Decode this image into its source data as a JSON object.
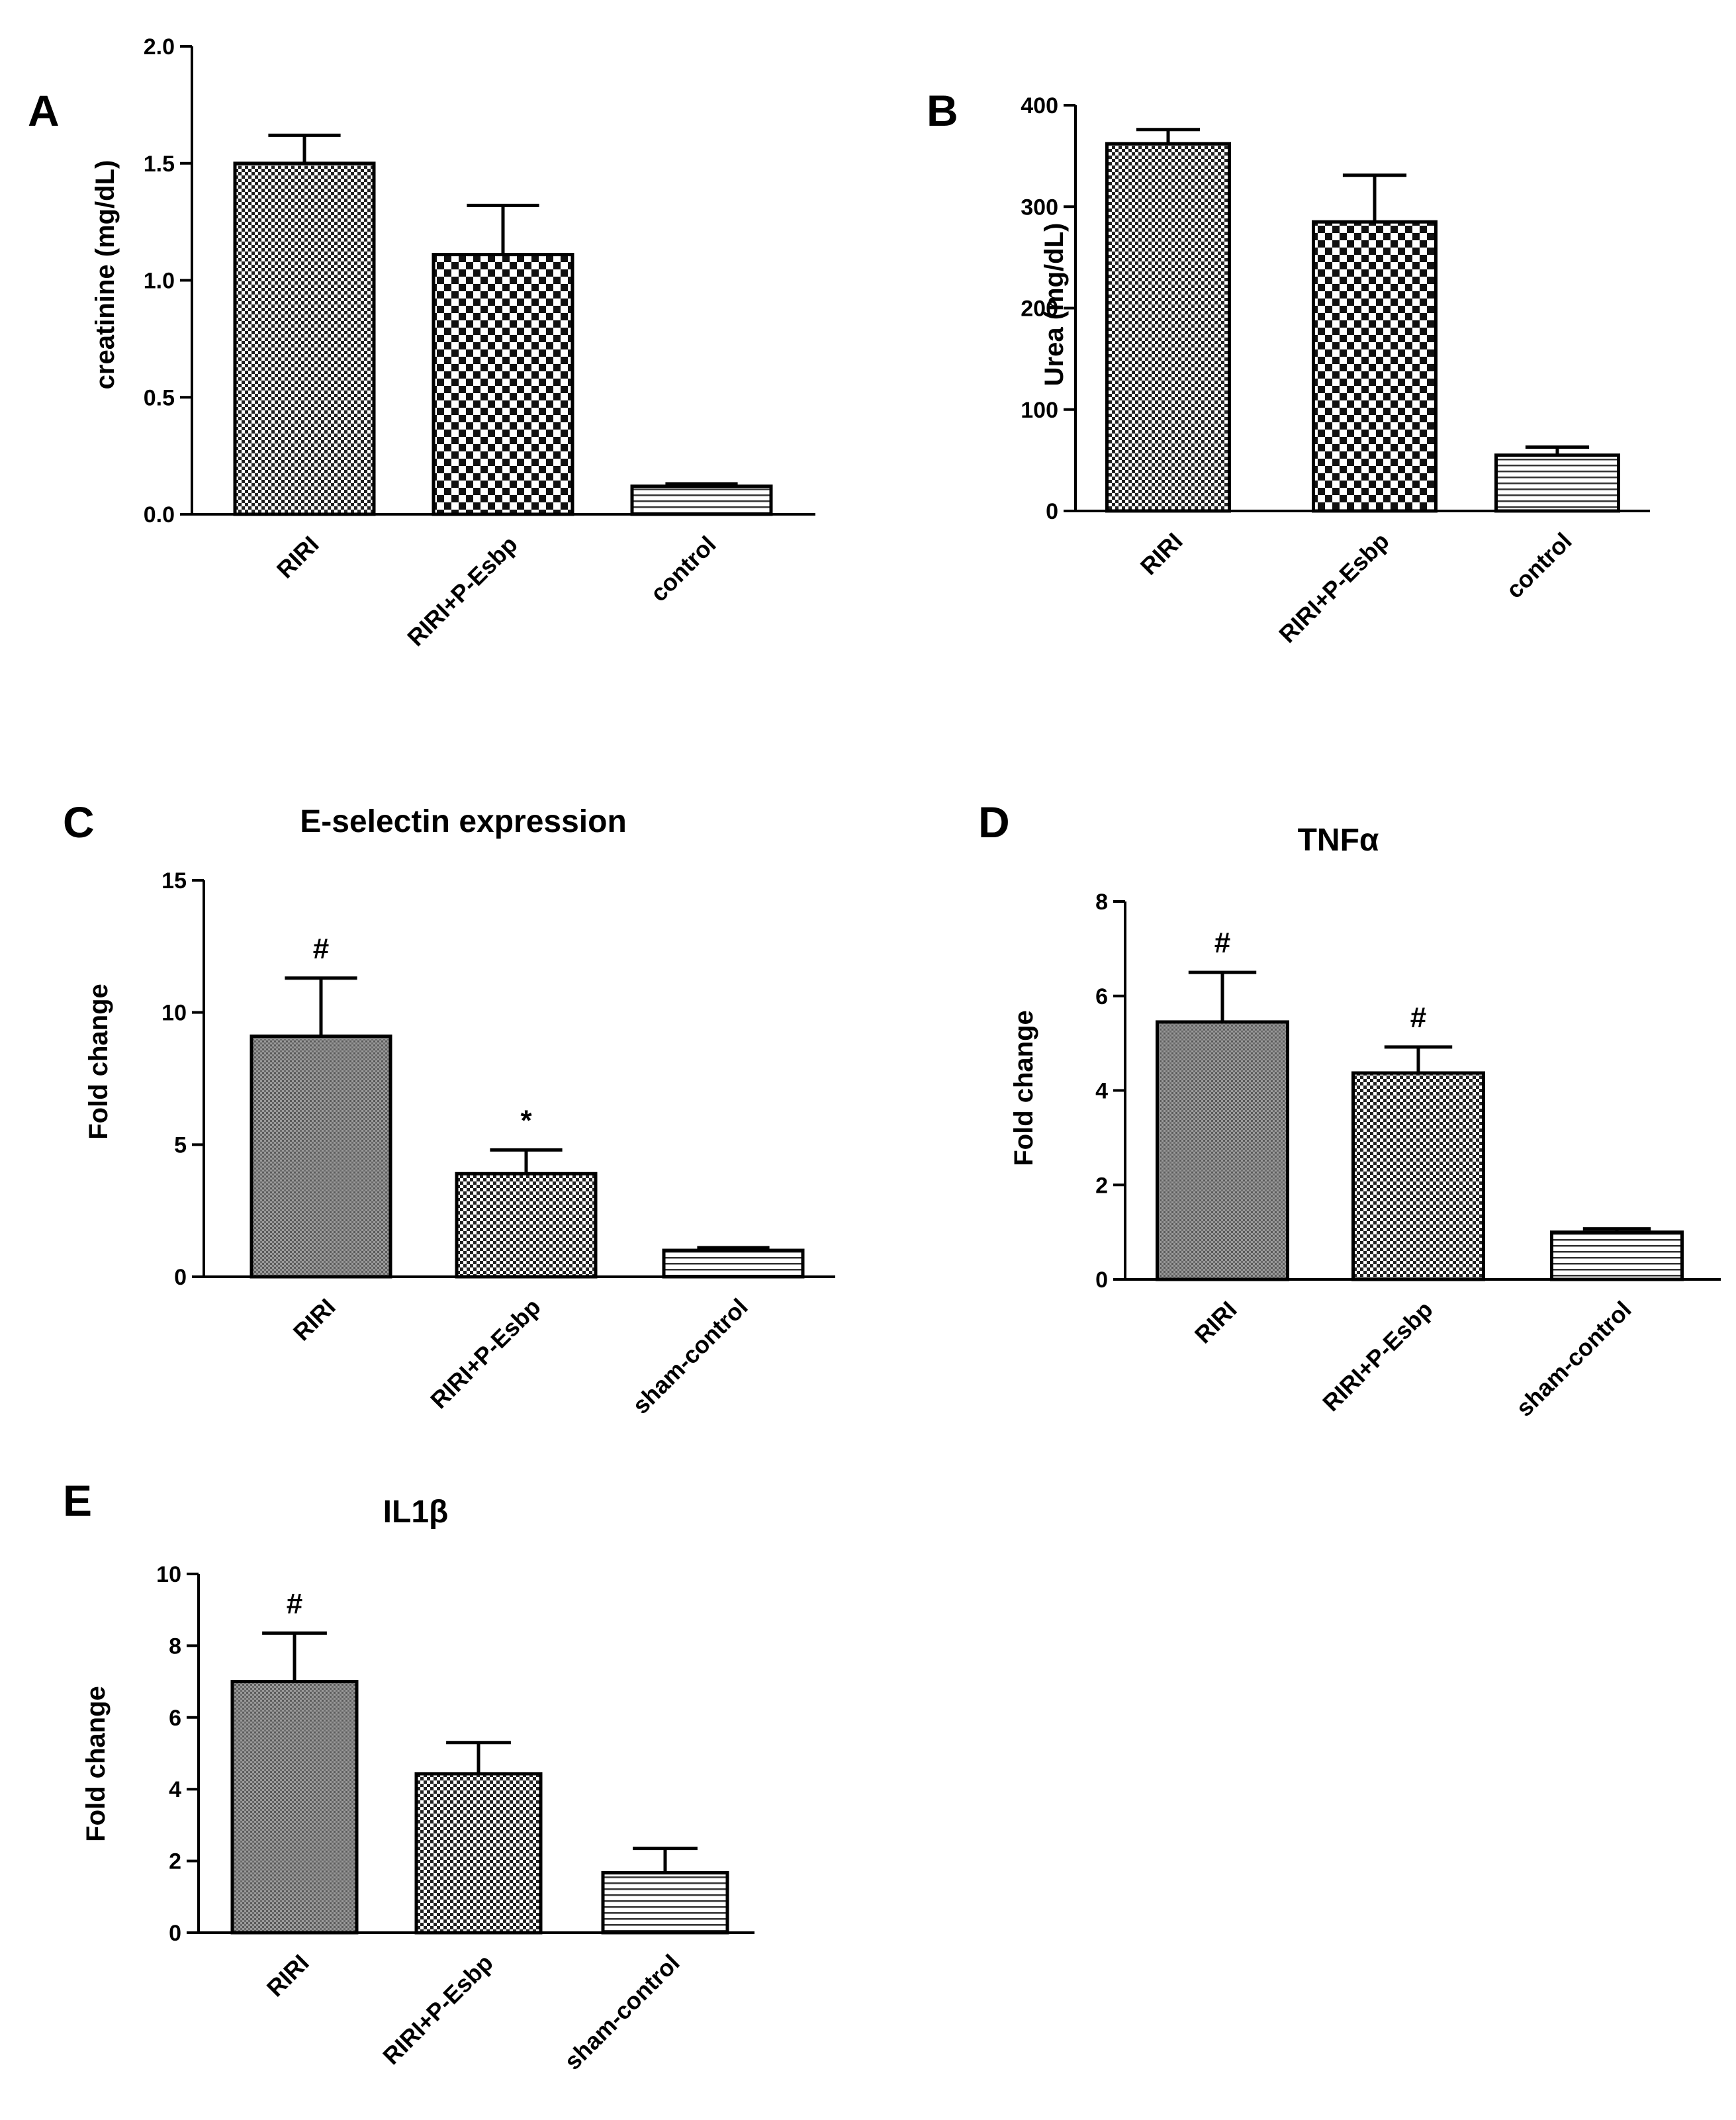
{
  "chart_data": [
    {
      "id": "A",
      "type": "bar",
      "panel_label": "A",
      "title": "",
      "xlabel": "",
      "ylabel": "creatinine (mg/dL)",
      "ylim": [
        0,
        2.0
      ],
      "yticks": [
        "0.0",
        "0.5",
        "1.0",
        "1.5",
        "2.0"
      ],
      "categories": [
        "RIRI",
        "RIRI+P-Esbp",
        "control"
      ],
      "values": [
        1.5,
        1.11,
        0.12
      ],
      "errors": [
        0.12,
        0.21,
        0.01
      ],
      "annotations": [
        "",
        "",
        ""
      ],
      "patterns": [
        "fine-check",
        "coarse-check",
        "hlines"
      ]
    },
    {
      "id": "B",
      "type": "bar",
      "panel_label": "B",
      "title": "",
      "xlabel": "",
      "ylabel": "Urea (mg/dL)",
      "ylim": [
        0,
        400
      ],
      "yticks": [
        "0",
        "100",
        "200",
        "300",
        "400"
      ],
      "categories": [
        "RIRI",
        "RIRI+P-Esbp",
        "control"
      ],
      "values": [
        362,
        285,
        55
      ],
      "errors": [
        14,
        46,
        8
      ],
      "annotations": [
        "",
        "",
        ""
      ],
      "patterns": [
        "fine-check",
        "coarse-check",
        "hlines"
      ]
    },
    {
      "id": "C",
      "type": "bar",
      "panel_label": "C",
      "title": "E-selectin expression",
      "xlabel": "",
      "ylabel": "Fold change",
      "ylim": [
        0,
        15
      ],
      "yticks": [
        "0",
        "5",
        "10",
        "15"
      ],
      "categories": [
        "RIRI",
        "RIRI+P-Esbp",
        "sham-control"
      ],
      "values": [
        9.1,
        3.9,
        1.0
      ],
      "errors": [
        2.2,
        0.9,
        0.1
      ],
      "annotations": [
        "#",
        "*",
        ""
      ],
      "patterns": [
        "dense-dots",
        "fine-check",
        "hlines"
      ]
    },
    {
      "id": "D",
      "type": "bar",
      "panel_label": "D",
      "title": "TNFα",
      "xlabel": "",
      "ylabel": "Fold change",
      "ylim": [
        0,
        8
      ],
      "yticks": [
        "0",
        "2",
        "4",
        "6",
        "8"
      ],
      "categories": [
        "RIRI",
        "RIRI+P-Esbp",
        "sham-control"
      ],
      "values": [
        5.45,
        4.37,
        1.0
      ],
      "errors": [
        1.05,
        0.55,
        0.07
      ],
      "annotations": [
        "#",
        "#",
        ""
      ],
      "patterns": [
        "dense-dots",
        "fine-check",
        "hlines"
      ]
    },
    {
      "id": "E",
      "type": "bar",
      "panel_label": "E",
      "title": "IL1β",
      "xlabel": "",
      "ylabel": "Fold change",
      "ylim": [
        0,
        10
      ],
      "yticks": [
        "0",
        "2",
        "4",
        "6",
        "8",
        "10"
      ],
      "categories": [
        "RIRI",
        "RIRI+P-Esbp",
        "sham-control"
      ],
      "values": [
        7.0,
        4.43,
        1.67
      ],
      "errors": [
        1.35,
        0.87,
        0.68
      ],
      "annotations": [
        "#",
        "",
        ""
      ],
      "patterns": [
        "dense-dots",
        "fine-check",
        "hlines"
      ]
    }
  ]
}
